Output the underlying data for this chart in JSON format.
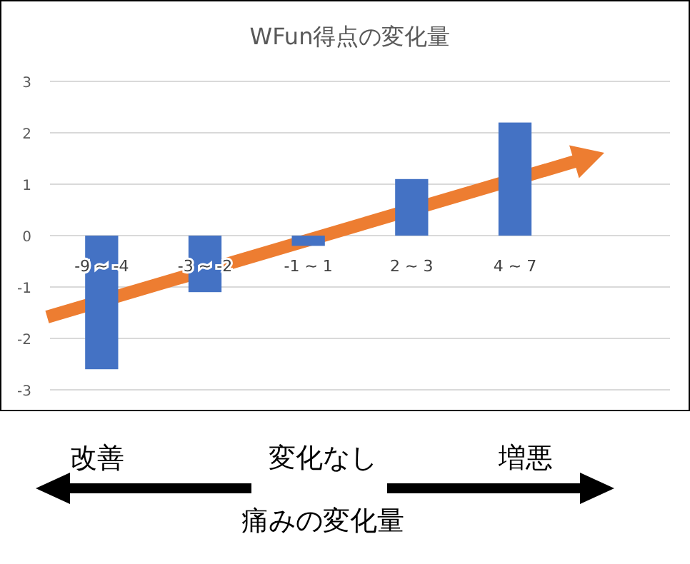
{
  "chart_data": {
    "type": "bar",
    "title": "WFun得点の変化量",
    "xlabel": "痛みの変化量",
    "categories": [
      "-9 ~ -4",
      "-3 ~ -2",
      "-1 ~ 1",
      "2 ~ 3",
      "4 ~ 7",
      null
    ],
    "values": [
      -2.6,
      -1.1,
      -0.2,
      1.1,
      2.2,
      null
    ],
    "color": "#4472c4",
    "ylim": [
      -3,
      3
    ],
    "yticks": [
      -3,
      -2,
      -1,
      0,
      1,
      2,
      3
    ],
    "grid": "y",
    "annotations": [
      "改善",
      "変化なし",
      "増悪"
    ]
  }
}
